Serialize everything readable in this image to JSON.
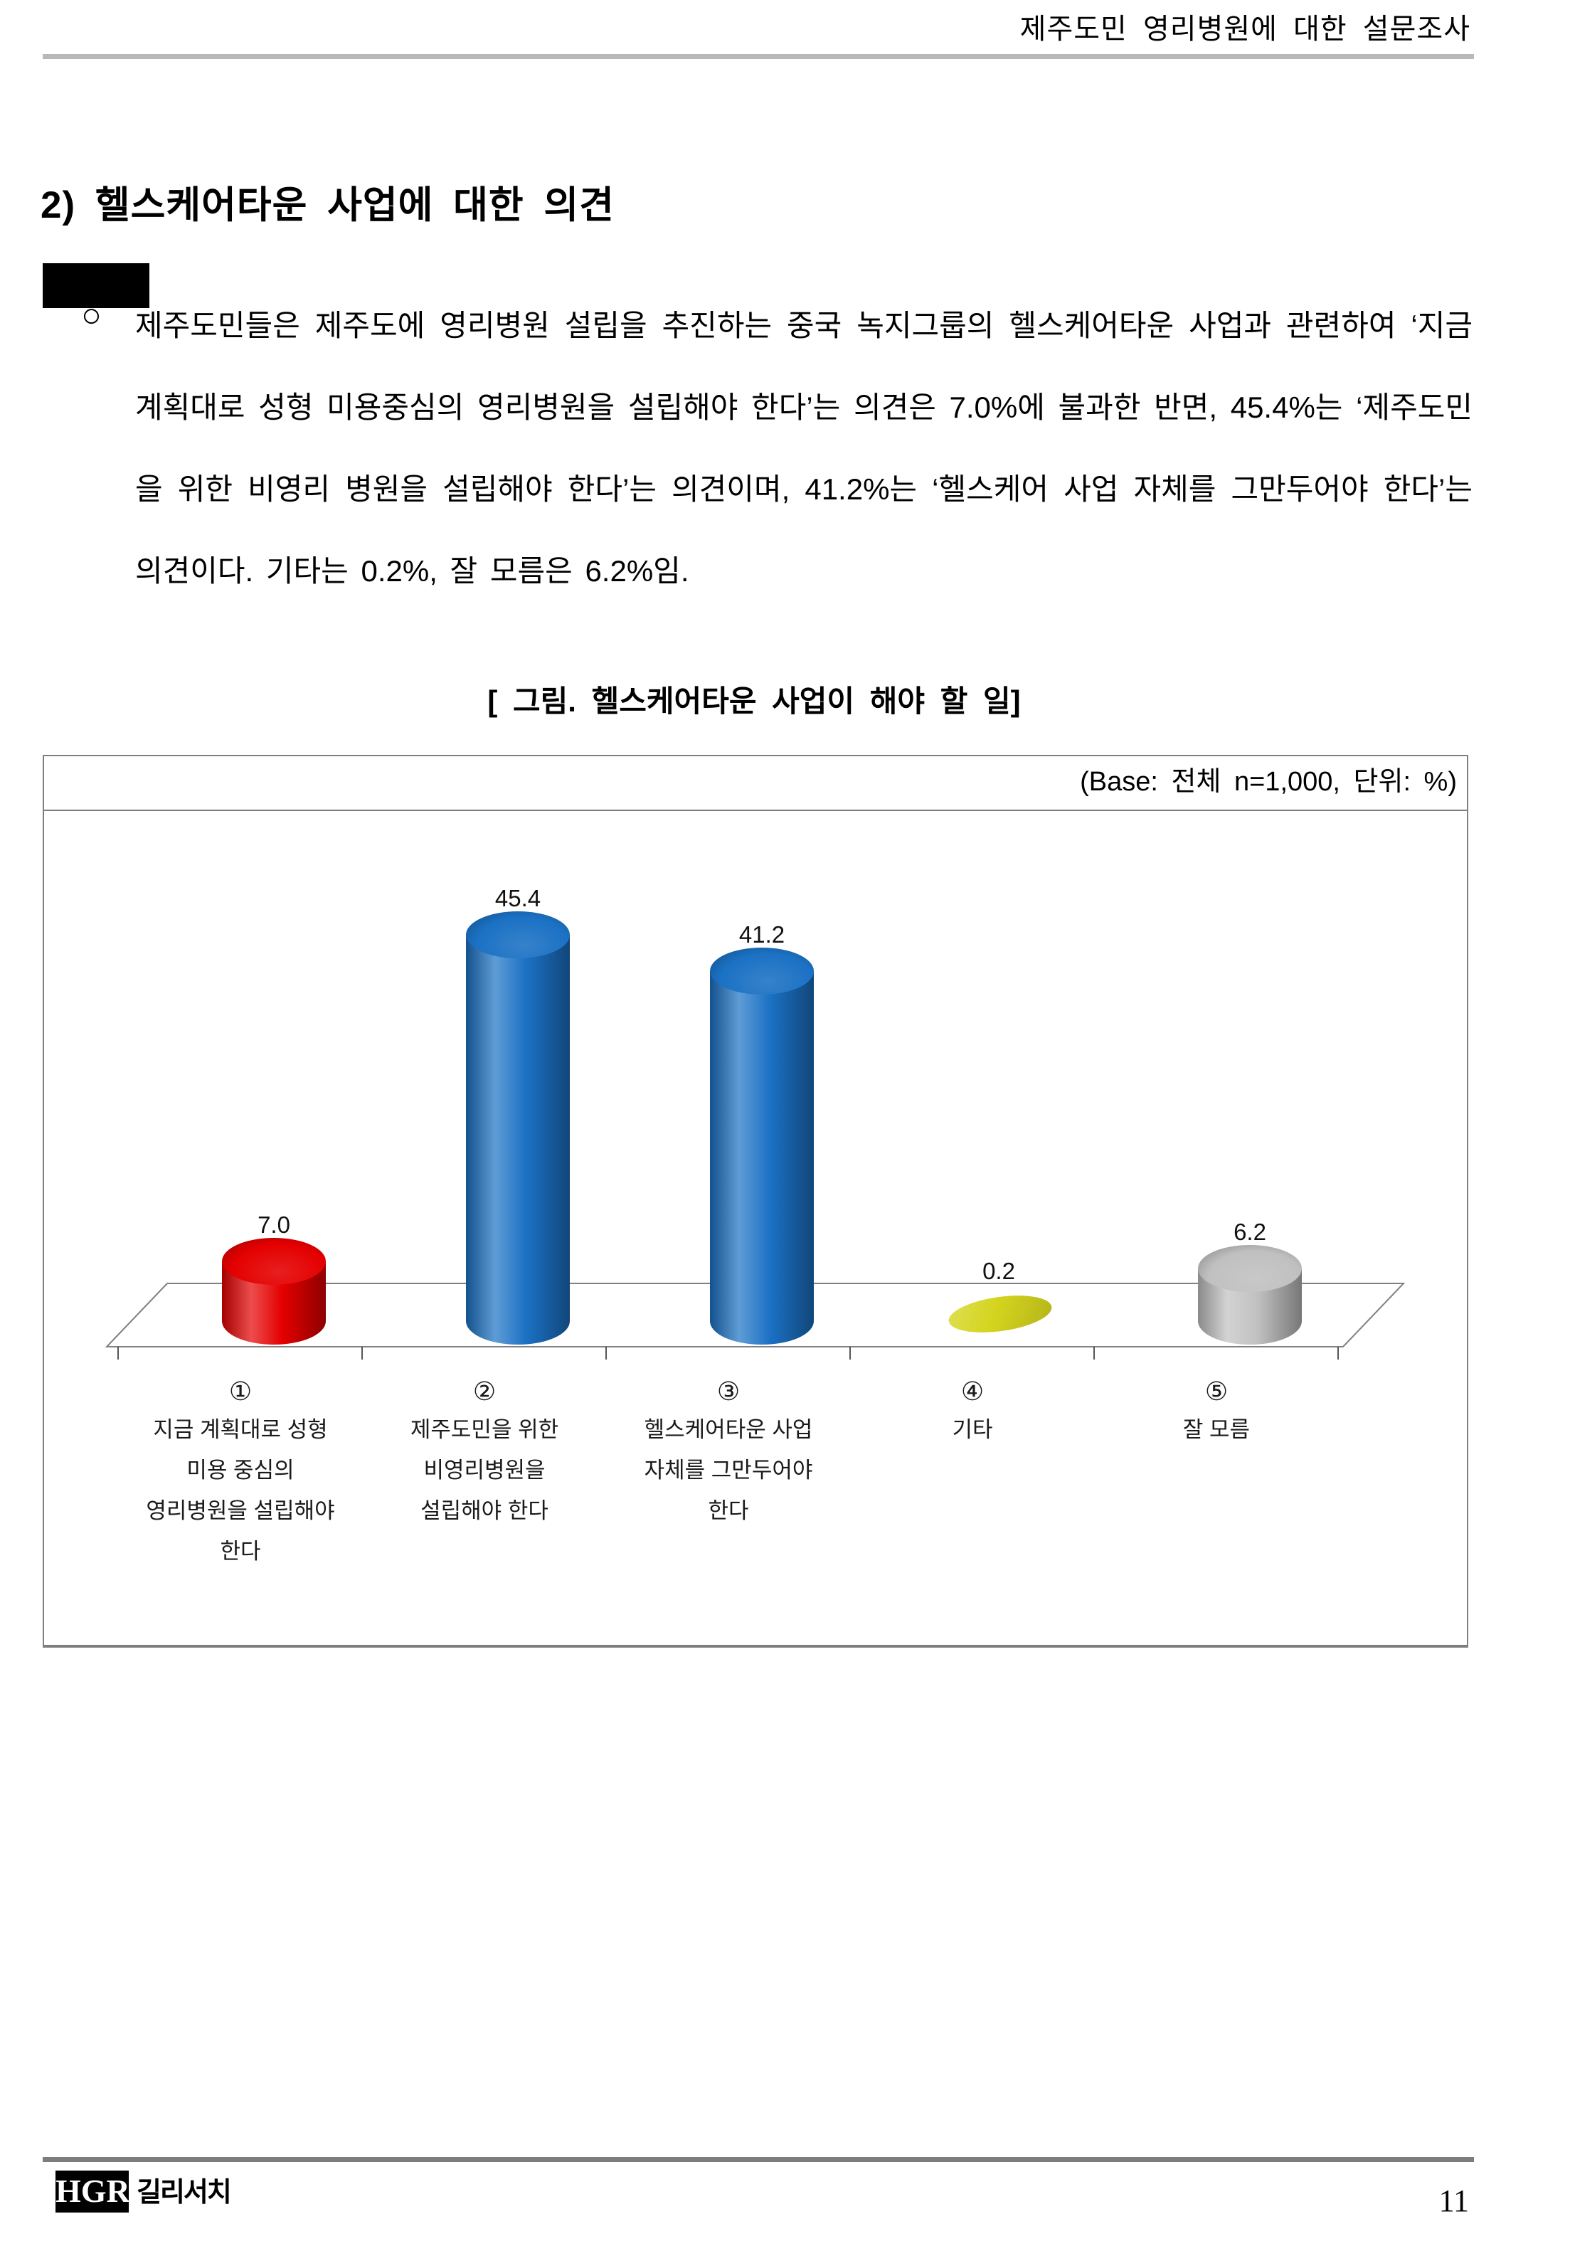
{
  "page": {
    "header": {
      "title": "제주도민 영리병원에 대한 설문조사"
    },
    "section": {
      "heading": "2) 헬스케어타운 사업에 대한 의견"
    },
    "paragraph": {
      "bullet_glyph": "○",
      "text": "제주도민들은 제주도에 영리병원 설립을 추진하는 중국 녹지그룹의 헬스케어타운 사업과 관련하여 ‘지금 계획대로 성형 미용중심의 영리병원을 설립해야 한다’는 의견은 7.0%에 불과한 반면, 45.4%는 ‘제주도민을 위한 비영리 병원을 설립해야 한다’는 의견이며, 41.2%는 ‘헬스케어 사업 자체를 그만두어야 한다’는 의견이다. 기타는 0.2%, 잘 모름은 6.2%임."
    },
    "figure": {
      "title": "[ 그림. 헬스케어타운 사업이 해야 할 일]"
    },
    "footer": {
      "logo_text": "HGR",
      "logo_name": "길리서치",
      "page_number": "11"
    }
  },
  "chart_data": {
    "type": "bar",
    "style": "3d-cylinder",
    "title": "[ 그림. 헬스케어타운 사업이 해야 할 일]",
    "base_note": "(Base: 전체 n=1,000, 단위: %)",
    "unit": "%",
    "categories": [
      {
        "marker": "①",
        "label_lines": [
          "지금 계획대로 성형",
          "미용 중심의",
          "영리병원을 설립해야",
          "한다"
        ]
      },
      {
        "marker": "②",
        "label_lines": [
          "제주도민을 위한",
          "비영리병원을",
          "설립해야 한다"
        ]
      },
      {
        "marker": "③",
        "label_lines": [
          "헬스케어타운 사업",
          "자체를 그만두어야",
          "한다"
        ]
      },
      {
        "marker": "④",
        "label_lines": [
          "기타"
        ]
      },
      {
        "marker": "⑤",
        "label_lines": [
          "잘 모름"
        ]
      }
    ],
    "values": [
      7.0,
      45.4,
      41.2,
      0.2,
      6.2
    ],
    "value_labels": [
      "7.0",
      "45.4",
      "41.2",
      "0.2",
      "6.2"
    ],
    "bar_colors": [
      "#e40000",
      "#1b71c4",
      "#1b71c4",
      "#d4d41e",
      "#c0c0c0"
    ],
    "ylim": [
      0,
      50
    ],
    "grid": false,
    "legend_position": "none"
  }
}
